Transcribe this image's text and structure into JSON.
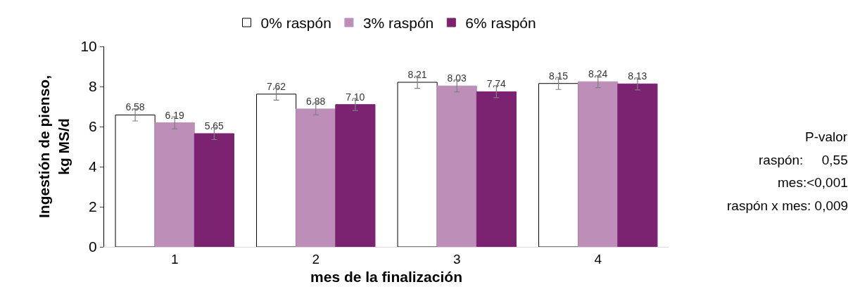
{
  "chart_data": {
    "type": "bar",
    "xlabel": "mes de la finalización",
    "ylabel": "Ingestión de pienso, kg MS/d",
    "categories": [
      "1",
      "2",
      "3",
      "4"
    ],
    "series": [
      {
        "name": "0% raspón",
        "color": "#ffffff",
        "values": [
          6.58,
          7.62,
          8.21,
          8.15
        ],
        "errors": [
          0.3,
          0.3,
          0.3,
          0.3
        ],
        "value_labels": [
          "6.58",
          "7.62",
          "8.21",
          "8.15"
        ]
      },
      {
        "name": "3% raspón",
        "color": "#bd8fb8",
        "values": [
          6.19,
          6.88,
          8.03,
          8.24
        ],
        "errors": [
          0.3,
          0.3,
          0.3,
          0.3
        ],
        "value_labels": [
          "6.19",
          "6.88",
          "8.03",
          "8.24"
        ]
      },
      {
        "name": "6% raspón",
        "color": "#7b2270",
        "values": [
          5.65,
          7.1,
          7.74,
          8.13
        ],
        "errors": [
          0.3,
          0.3,
          0.3,
          0.3
        ],
        "value_labels": [
          "5.65",
          "7.10",
          "7.74",
          "8.13"
        ]
      }
    ],
    "ylim": [
      0,
      10
    ],
    "yticks": [
      0,
      2,
      4,
      6,
      8,
      10
    ],
    "grid": false,
    "legend": "top",
    "annotations": [
      "P-valor",
      "raspón:     0,55",
      "mes:<0,001",
      "raspón x mes: 0,009"
    ]
  }
}
